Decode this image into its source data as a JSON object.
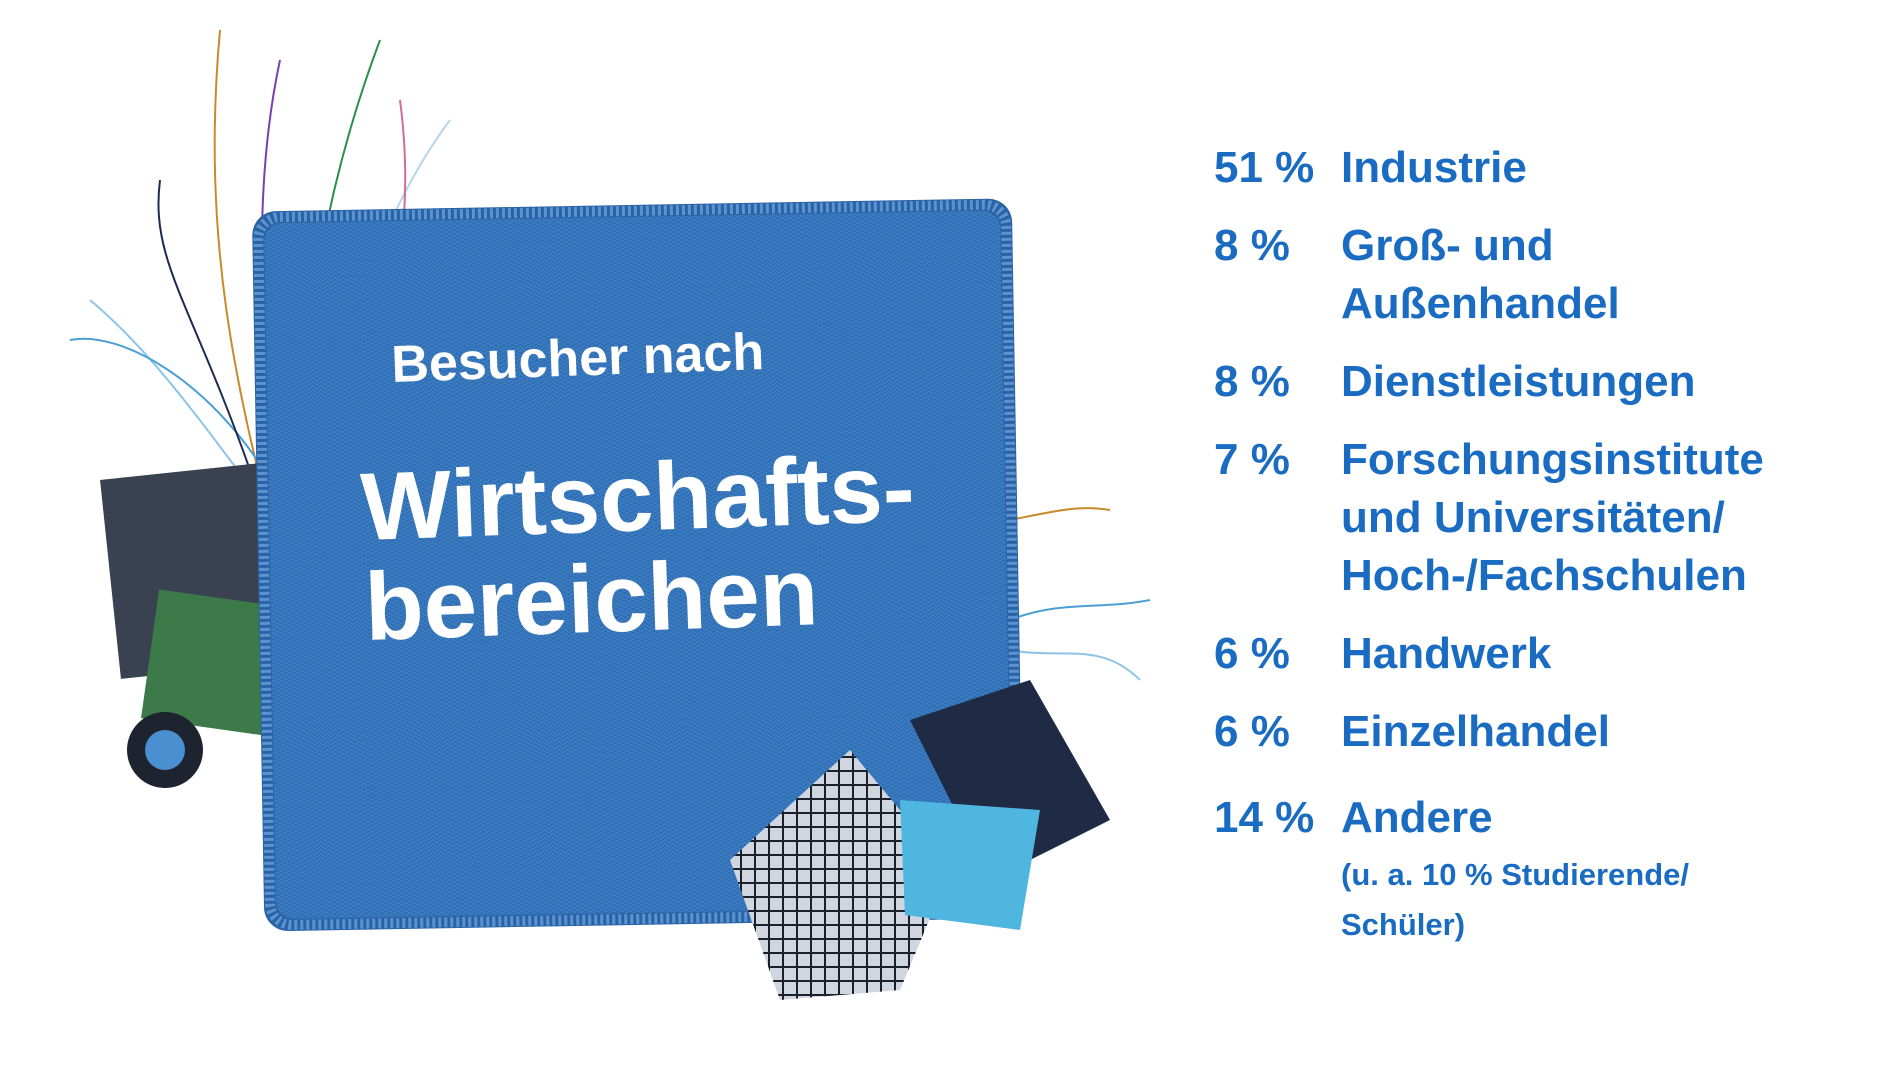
{
  "title": "Besucher nach",
  "heading": [
    "Wirtschafts-",
    "bereichen"
  ],
  "items": [
    {
      "share": "51 %",
      "label": [
        "Industrie"
      ]
    },
    {
      "share": "8 %",
      "label": [
        "Groß- und",
        "Außenhandel"
      ]
    },
    {
      "share": "8 %",
      "label": [
        "Dienstleistungen"
      ]
    },
    {
      "share": "7 %",
      "label": [
        "Forschungsinstitute",
        "und Universitäten/",
        "Hoch-/Fachschulen"
      ]
    },
    {
      "share": "6 %",
      "label": [
        "Handwerk"
      ]
    },
    {
      "share": "6 %",
      "label": [
        "Einzelhandel"
      ]
    },
    {
      "share": "14 %",
      "label": [
        "Andere"
      ],
      "note": [
        "(u. a. 10 % Studierende/",
        "Schüler)"
      ]
    }
  ]
}
